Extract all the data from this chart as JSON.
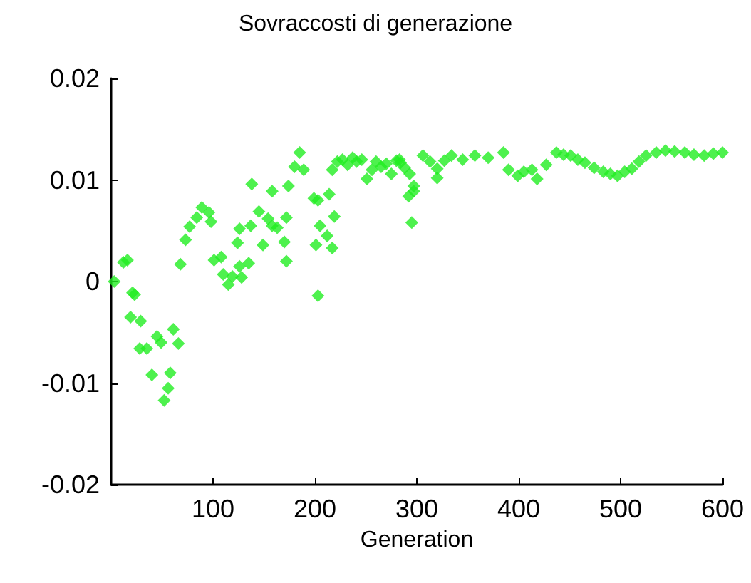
{
  "chart_data": {
    "type": "scatter",
    "title": "Sovraccosti di generazione",
    "xlabel": "Generation",
    "xlim": [
      0,
      600
    ],
    "xticks": [
      100,
      200,
      300,
      400,
      500,
      600
    ],
    "ylim": [
      -0.02,
      0.02
    ],
    "yticks": [
      -0.02,
      -0.01,
      0,
      0.01,
      0.02
    ],
    "grid": false,
    "marker": "diamond",
    "series": [
      {
        "color": "#22ee22",
        "x": [
          3,
          12,
          16,
          21,
          23,
          19,
          29,
          28,
          35,
          40,
          45,
          49,
          52,
          56,
          58,
          61,
          66,
          68,
          73,
          77,
          84,
          89,
          96,
          98,
          101,
          108,
          110,
          115,
          119,
          126,
          128,
          126,
          124,
          135,
          137,
          138,
          145,
          149,
          154,
          158,
          158,
          163,
          170,
          172,
          172,
          174,
          180,
          185,
          189,
          199,
          203,
          203,
          201,
          205,
          212,
          214,
          217,
          219,
          217,
          222,
          227,
          232,
          237,
          241,
          246,
          251,
          256,
          260,
          265,
          270,
          275,
          280,
          284,
          288,
          293,
          295,
          297,
          283,
          297,
          292,
          306,
          313,
          320,
          320,
          327,
          334,
          345,
          357,
          370,
          385,
          390,
          399,
          405,
          413,
          418,
          427,
          437,
          444,
          451,
          458,
          465,
          474,
          483,
          490,
          497,
          504,
          511,
          518,
          525,
          535,
          544,
          553,
          563,
          572,
          582,
          591,
          600
        ],
        "values": [
          0,
          0.0019,
          0.0021,
          -0.0011,
          -0.0013,
          -0.0035,
          -0.0039,
          -0.0066,
          -0.0066,
          -0.0092,
          -0.0054,
          -0.006,
          -0.0117,
          -0.0105,
          -0.009,
          -0.0047,
          -0.0061,
          0.0017,
          0.0041,
          0.0054,
          0.0063,
          0.0073,
          0.0068,
          0.0059,
          0.0021,
          0.0024,
          0.0007,
          -0.0003,
          0.0005,
          0.0015,
          0.0004,
          0.0052,
          0.0038,
          0.0018,
          0.0055,
          0.0096,
          0.0069,
          0.0036,
          0.0062,
          0.0089,
          0.0055,
          0.0053,
          0.0039,
          0.002,
          0.0063,
          0.0094,
          0.0113,
          0.0127,
          0.011,
          0.0082,
          0.008,
          -0.0014,
          0.0036,
          0.0055,
          0.0045,
          0.0086,
          0.0033,
          0.0064,
          0.011,
          0.0118,
          0.012,
          0.0115,
          0.0122,
          0.0118,
          0.012,
          0.0101,
          0.011,
          0.0118,
          0.0113,
          0.0116,
          0.0106,
          0.0119,
          0.0117,
          0.0112,
          0.0106,
          0.0058,
          0.0089,
          0.012,
          0.0094,
          0.0084,
          0.0124,
          0.0118,
          0.0111,
          0.0102,
          0.0119,
          0.0124,
          0.012,
          0.0124,
          0.0122,
          0.0127,
          0.011,
          0.0104,
          0.0108,
          0.011,
          0.0101,
          0.0115,
          0.0127,
          0.0125,
          0.0124,
          0.012,
          0.0117,
          0.0112,
          0.0108,
          0.0106,
          0.0104,
          0.0108,
          0.0111,
          0.0118,
          0.0124,
          0.0127,
          0.0129,
          0.0128,
          0.0127,
          0.0125,
          0.0124,
          0.0126,
          0.0127
        ]
      }
    ]
  }
}
